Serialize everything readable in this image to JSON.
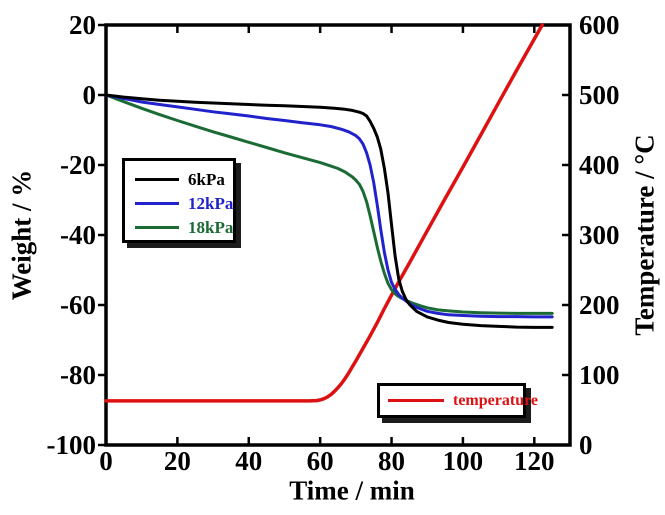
{
  "chart_data": {
    "type": "line",
    "title": "",
    "xlabel": "Time / min",
    "ylabel_left": "Weight / %",
    "ylabel_right": "Temperature / °C",
    "x_range": [
      0,
      130
    ],
    "x_ticks": [
      0,
      20,
      40,
      60,
      80,
      100,
      120
    ],
    "y_left_range": [
      -100,
      20
    ],
    "y_left_ticks": [
      20,
      0,
      -20,
      -40,
      -60,
      -80,
      -100
    ],
    "y_right_range": [
      0,
      600
    ],
    "y_right_ticks": [
      600,
      500,
      400,
      300,
      200,
      100,
      0
    ],
    "grid": false,
    "frame_color": "#000000",
    "series": [
      {
        "name": "temperature",
        "color": "#dd1111",
        "axis": "right",
        "points": [
          [
            0,
            63
          ],
          [
            10,
            63
          ],
          [
            20,
            63
          ],
          [
            30,
            63
          ],
          [
            40,
            63
          ],
          [
            50,
            63
          ],
          [
            57,
            63
          ],
          [
            59,
            63.5
          ],
          [
            60,
            64.5
          ],
          [
            61,
            66
          ],
          [
            62,
            68.5
          ],
          [
            63,
            72
          ],
          [
            64,
            76.5
          ],
          [
            65,
            82
          ],
          [
            66,
            88
          ],
          [
            67,
            95
          ],
          [
            68,
            103
          ],
          [
            70,
            120
          ],
          [
            72,
            138
          ],
          [
            74,
            156
          ],
          [
            76,
            175
          ],
          [
            78,
            195
          ],
          [
            80,
            214
          ],
          [
            82,
            233
          ],
          [
            85,
            260
          ],
          [
            90,
            306
          ],
          [
            95,
            352
          ],
          [
            100,
            397
          ],
          [
            105,
            443
          ],
          [
            110,
            489
          ],
          [
            115,
            535
          ],
          [
            120,
            580
          ],
          [
            122.2,
            600
          ]
        ]
      },
      {
        "name": "18kPa",
        "color": "#1b6b35",
        "axis": "left",
        "points": [
          [
            0,
            0
          ],
          [
            5,
            -1.9
          ],
          [
            10,
            -3.8
          ],
          [
            15,
            -5.6
          ],
          [
            20,
            -7.3
          ],
          [
            25,
            -8.9
          ],
          [
            30,
            -10.5
          ],
          [
            35,
            -12
          ],
          [
            40,
            -13.5
          ],
          [
            45,
            -15
          ],
          [
            50,
            -16.5
          ],
          [
            55,
            -17.9
          ],
          [
            60,
            -19.3
          ],
          [
            63,
            -20.3
          ],
          [
            65,
            -21
          ],
          [
            67,
            -22
          ],
          [
            69,
            -23.4
          ],
          [
            70,
            -24.3
          ],
          [
            71,
            -25.5
          ],
          [
            72,
            -27.5
          ],
          [
            73,
            -30.5
          ],
          [
            74,
            -34.5
          ],
          [
            75,
            -39
          ],
          [
            76,
            -43.5
          ],
          [
            77,
            -47.5
          ],
          [
            78,
            -51
          ],
          [
            79,
            -53.8
          ],
          [
            80,
            -55.6
          ],
          [
            81,
            -56.8
          ],
          [
            82,
            -57.6
          ],
          [
            84,
            -58.7
          ],
          [
            86,
            -59.5
          ],
          [
            88,
            -60.2
          ],
          [
            90,
            -60.8
          ],
          [
            93,
            -61.4
          ],
          [
            96,
            -61.7
          ],
          [
            100,
            -62
          ],
          [
            105,
            -62.2
          ],
          [
            110,
            -62.3
          ],
          [
            115,
            -62.4
          ],
          [
            120,
            -62.4
          ],
          [
            125,
            -62.4
          ]
        ]
      },
      {
        "name": "12kPa",
        "color": "#2222cc",
        "axis": "left",
        "points": [
          [
            0,
            0
          ],
          [
            5,
            -1
          ],
          [
            10,
            -2
          ],
          [
            15,
            -2.7
          ],
          [
            20,
            -3.4
          ],
          [
            25,
            -4.1
          ],
          [
            30,
            -4.8
          ],
          [
            35,
            -5.4
          ],
          [
            40,
            -6
          ],
          [
            45,
            -6.7
          ],
          [
            50,
            -7.3
          ],
          [
            55,
            -7.9
          ],
          [
            60,
            -8.5
          ],
          [
            63,
            -9
          ],
          [
            66,
            -9.8
          ],
          [
            68,
            -10.5
          ],
          [
            70,
            -11.6
          ],
          [
            71,
            -12.5
          ],
          [
            72,
            -14
          ],
          [
            73,
            -16.5
          ],
          [
            74,
            -20
          ],
          [
            75,
            -25
          ],
          [
            76,
            -31.5
          ],
          [
            77,
            -38.5
          ],
          [
            78,
            -45
          ],
          [
            79,
            -50
          ],
          [
            80,
            -53.5
          ],
          [
            81,
            -55.5
          ],
          [
            82,
            -57
          ],
          [
            83,
            -58
          ],
          [
            85,
            -59.6
          ],
          [
            87,
            -60.7
          ],
          [
            90,
            -61.8
          ],
          [
            93,
            -62.4
          ],
          [
            96,
            -62.8
          ],
          [
            100,
            -63
          ],
          [
            105,
            -63.2
          ],
          [
            110,
            -63.3
          ],
          [
            115,
            -63.3
          ],
          [
            120,
            -63.4
          ],
          [
            125,
            -63.4
          ]
        ]
      },
      {
        "name": "6kPa",
        "color": "#000000",
        "axis": "left",
        "points": [
          [
            0,
            0
          ],
          [
            5,
            -0.6
          ],
          [
            10,
            -1.1
          ],
          [
            15,
            -1.5
          ],
          [
            20,
            -1.8
          ],
          [
            25,
            -2.1
          ],
          [
            30,
            -2.3
          ],
          [
            35,
            -2.5
          ],
          [
            40,
            -2.7
          ],
          [
            45,
            -2.9
          ],
          [
            50,
            -3.1
          ],
          [
            55,
            -3.3
          ],
          [
            60,
            -3.5
          ],
          [
            64,
            -3.8
          ],
          [
            67,
            -4.1
          ],
          [
            69,
            -4.4
          ],
          [
            71,
            -4.9
          ],
          [
            72,
            -5.3
          ],
          [
            73,
            -6
          ],
          [
            74,
            -7.5
          ],
          [
            75,
            -9.5
          ],
          [
            76,
            -12
          ],
          [
            77,
            -15.5
          ],
          [
            78,
            -21
          ],
          [
            79,
            -28
          ],
          [
            80,
            -37
          ],
          [
            81,
            -46
          ],
          [
            82,
            -52.5
          ],
          [
            83,
            -56
          ],
          [
            84,
            -58.3
          ],
          [
            85,
            -59.8
          ],
          [
            87,
            -61.8
          ],
          [
            90,
            -63.4
          ],
          [
            93,
            -64.3
          ],
          [
            96,
            -65
          ],
          [
            100,
            -65.5
          ],
          [
            105,
            -65.9
          ],
          [
            110,
            -66.1
          ],
          [
            115,
            -66.3
          ],
          [
            120,
            -66.4
          ],
          [
            125,
            -66.4
          ]
        ]
      }
    ],
    "legend_pressure": {
      "position": "upper-left",
      "entries": [
        {
          "label": "6kPa",
          "color": "#000000"
        },
        {
          "label": "12kPa",
          "color": "#2222cc"
        },
        {
          "label": "18kPa",
          "color": "#1b6b35"
        }
      ]
    },
    "legend_temperature": {
      "position": "lower-right",
      "entries": [
        {
          "label": "temperature",
          "color": "#dd1111"
        }
      ]
    }
  }
}
